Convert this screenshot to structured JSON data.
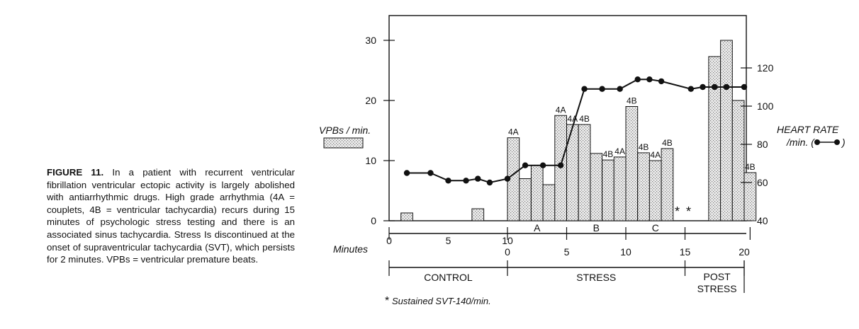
{
  "caption": {
    "label": "FIGURE 11.",
    "text": "In a patient with recurrent ventricular fibrillation ventricular ectopic activity is largely abolished with antiarrhythmic drugs. High grade arrhythmia (4A = couplets, 4B = ventricular tachycardia) recurs during 15 minutes of psychologic stress testing and there is an associated sinus tachycardia. Stress Is discontinued at the onset of supraventricular tachycardia (SVT), which persists for 2 minutes. VPBs = ventricular premature beats."
  },
  "chart_data": {
    "type": "bar",
    "left_axis": {
      "label": "VPBs / min.",
      "ticks": [
        "0",
        "10",
        "20",
        "30"
      ],
      "range": [
        0,
        33
      ]
    },
    "right_axis": {
      "label_line1": "HEART RATE",
      "label_line2": "/min. (",
      "label_line2_end": ")",
      "ticks": [
        "40",
        "60",
        "80",
        "100",
        "120"
      ],
      "range": [
        40,
        124
      ]
    },
    "x_axis": {
      "label": "Minutes",
      "control_ticks": [
        "0",
        "5",
        "10"
      ],
      "time_ticks": [
        "0",
        "5",
        "10",
        "15",
        "20"
      ]
    },
    "segments": [
      {
        "name": "A"
      },
      {
        "name": "B"
      },
      {
        "name": "C"
      }
    ],
    "phases": [
      {
        "name": "CONTROL"
      },
      {
        "name": "STRESS"
      },
      {
        "name": "POST",
        "name2": "STRESS"
      }
    ],
    "bars": [
      {
        "t": 1.5,
        "value": 1.3,
        "label": ""
      },
      {
        "t": 7.5,
        "value": 2.0,
        "label": ""
      },
      {
        "t": 10.5,
        "value": 13.8,
        "label": "4A"
      },
      {
        "t": 11.5,
        "value": 7.0,
        "label": ""
      },
      {
        "t": 12.5,
        "value": 9.2,
        "label": ""
      },
      {
        "t": 13.5,
        "value": 6.0,
        "label": ""
      },
      {
        "t": 14.5,
        "value": 17.5,
        "label": "4A"
      },
      {
        "t": 15.5,
        "value": 16.0,
        "label": "4A"
      },
      {
        "t": 16.5,
        "value": 16.0,
        "label": "4B"
      },
      {
        "t": 17.5,
        "value": 11.2,
        "label": ""
      },
      {
        "t": 18.5,
        "value": 10.1,
        "label": "4B"
      },
      {
        "t": 19.5,
        "value": 10.6,
        "label": "4A"
      },
      {
        "t": 20.5,
        "value": 19.0,
        "label": "4B"
      },
      {
        "t": 21.5,
        "value": 11.3,
        "label": "4B"
      },
      {
        "t": 22.5,
        "value": 10.0,
        "label": "4A"
      },
      {
        "t": 23.5,
        "value": 12.0,
        "label": "4B"
      },
      {
        "t": 27.5,
        "value": 27.3,
        "label": ""
      },
      {
        "t": 28.5,
        "value": 30.0,
        "label": ""
      },
      {
        "t": 29.5,
        "value": 20.0,
        "label": ""
      },
      {
        "t": 30.5,
        "value": 8.0,
        "label": "4B"
      }
    ],
    "heart_rate": {
      "t": [
        1.5,
        3.5,
        5,
        6.5,
        7.5,
        8.5,
        10,
        11.5,
        13,
        14.5,
        16.5,
        18,
        19.5,
        21,
        22,
        23,
        25.5,
        26.5,
        27.5,
        28.5,
        30
      ],
      "bpm": [
        65,
        65,
        61,
        61,
        62,
        60,
        62,
        69,
        69,
        69,
        109,
        109,
        109,
        114,
        114,
        113,
        109,
        110,
        110,
        110,
        110
      ]
    },
    "svt_markers": [
      "*",
      "*"
    ],
    "footnote": "Sustained SVT-140/min.",
    "footnote_mark": "*",
    "legend_label": "VPBs / min."
  }
}
